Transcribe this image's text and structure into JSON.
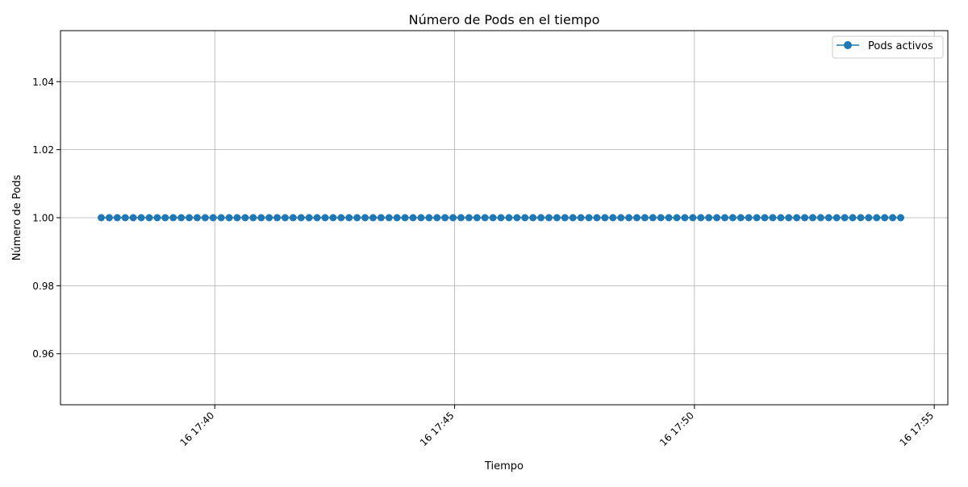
{
  "chart_data": {
    "type": "line",
    "title": "Número de Pods en el tiempo",
    "xlabel": "Tiempo",
    "ylabel": "Número de Pods",
    "x_start": "16 17:37:38",
    "x_end": "16 17:54:26",
    "x_step_seconds": 10,
    "xlim": [
      "16 17:36:47",
      "16 17:55:17"
    ],
    "ylim": [
      0.945,
      1.055
    ],
    "x_ticks": [
      "16 17:40",
      "16 17:45",
      "16 17:50",
      "16 17:55"
    ],
    "y_ticks": [
      "0.96",
      "0.98",
      "1.00",
      "1.02",
      "1.04"
    ],
    "grid": true,
    "legend_position": "top-right",
    "series": [
      {
        "name": "Pods activos",
        "color": "#1f77b4",
        "marker": "circle",
        "constant_value": 1.0,
        "point_count": 101
      }
    ]
  }
}
